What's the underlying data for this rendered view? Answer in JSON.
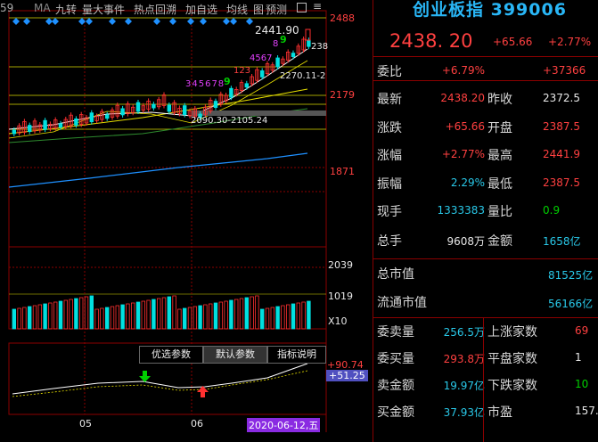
{
  "toolbar": {
    "left_fragment": "59",
    "items": [
      "MA",
      "九转",
      "量大事件",
      "热点回溯",
      "加自选",
      "均线",
      "图",
      "预测"
    ]
  },
  "price_axis": {
    "labels": [
      "2488",
      "2179",
      "1871"
    ],
    "volume_labels": [
      "2039",
      "1019",
      "X10"
    ]
  },
  "chart_annotations": {
    "high": "2441.90",
    "right_price": "238",
    "mid_line": "2270.11-2",
    "low_range": "2090.30-2105.24",
    "seq_purple": "345678",
    "seq_green_9": "9",
    "seq_red": "123",
    "seq_purple2": "4567",
    "seq_8": "8",
    "seq_9b": "9"
  },
  "indicator_buttons": {
    "optimize": "优选参数",
    "default": "默认参数",
    "explain": "指标说明"
  },
  "indicator_values": {
    "upper": "+90.74",
    "current": "+51.25"
  },
  "time_axis": {
    "labels": [
      "05",
      "06"
    ],
    "current_date": "2020-06-12,五"
  },
  "quote": {
    "title": "创业板指 399006",
    "price": "2438. 20",
    "change": "+65.66",
    "change_pct": "+2.77%",
    "rows": [
      {
        "label": "委比",
        "value": "+6.79%",
        "value_color": "red",
        "label2": "",
        "value2": "+37366",
        "value2_color": "red"
      },
      {
        "label": "最新",
        "value": "2438.20",
        "value_color": "red",
        "label2": "昨收",
        "value2": "2372.5",
        "value2_color": "white"
      },
      {
        "label": "涨跌",
        "value": "+65.66",
        "value_color": "red",
        "label2": "开盘",
        "value2": "2387.5",
        "value2_color": "red"
      },
      {
        "label": "涨幅",
        "value": "+2.77%",
        "value_color": "red",
        "label2": "最高",
        "value2": "2441.9",
        "value2_color": "red"
      },
      {
        "label": "振幅",
        "value": "2.29%",
        "value_color": "cyan",
        "label2": "最低",
        "value2": "2387.5",
        "value2_color": "red"
      },
      {
        "label": "现手",
        "value": "1333383",
        "value_color": "cyan",
        "label2": "量比",
        "value2": "0.9",
        "value2_color": "green"
      },
      {
        "label": "总手",
        "value": "9608万",
        "value_color": "white",
        "label2": "金额",
        "value2": "1658亿",
        "value2_color": "cyan"
      }
    ],
    "mcap_rows": [
      {
        "label": "总市值",
        "value": "81525亿"
      },
      {
        "label": "流通市值",
        "value": "56166亿"
      }
    ],
    "bottom_rows": [
      {
        "label": "委卖量",
        "value": "256.5万",
        "value_color": "cyan",
        "label2": "上涨家数",
        "value2": "69",
        "value2_color": "red"
      },
      {
        "label": "委买量",
        "value": "293.8万",
        "value_color": "red",
        "label2": "平盘家数",
        "value2": "1",
        "value2_color": "white"
      },
      {
        "label": "卖金额",
        "value": "19.97亿",
        "value_color": "cyan",
        "label2": "下跌家数",
        "value2": "10",
        "value2_color": "green"
      },
      {
        "label": "买金额",
        "value": "37.93亿",
        "value_color": "cyan",
        "label2": "市盈",
        "value2": "157.",
        "value2_color": "white"
      }
    ]
  }
}
